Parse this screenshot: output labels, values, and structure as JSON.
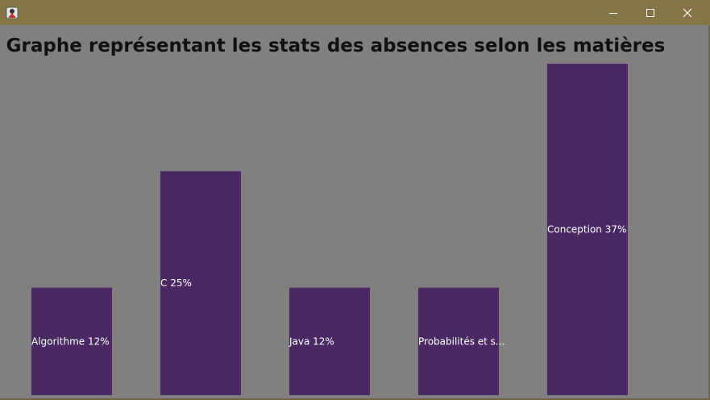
{
  "window": {
    "app_icon": "java-duke-icon",
    "controls": {
      "minimize_icon": "minimize-icon",
      "maximize_icon": "maximize-icon",
      "close_icon": "close-icon"
    }
  },
  "colors": {
    "titlebar": "#857445",
    "background": "#808080",
    "bar": "#492963",
    "label": "#ffffff"
  },
  "chart_data": {
    "type": "bar",
    "title": "Graphe représentant les stats des absences selon les matières",
    "categories": [
      "Algorithme",
      "C",
      "Java",
      "Probabilités et s...",
      "Conception"
    ],
    "values": [
      12,
      25,
      12,
      12,
      37
    ],
    "labels": [
      "Algorithme 12%",
      "C 25%",
      "Java 12%",
      "Probabilités et s...",
      "Conception 37%"
    ],
    "unit": "%",
    "ylim": [
      0,
      37
    ],
    "grid": false,
    "legend": "none"
  }
}
